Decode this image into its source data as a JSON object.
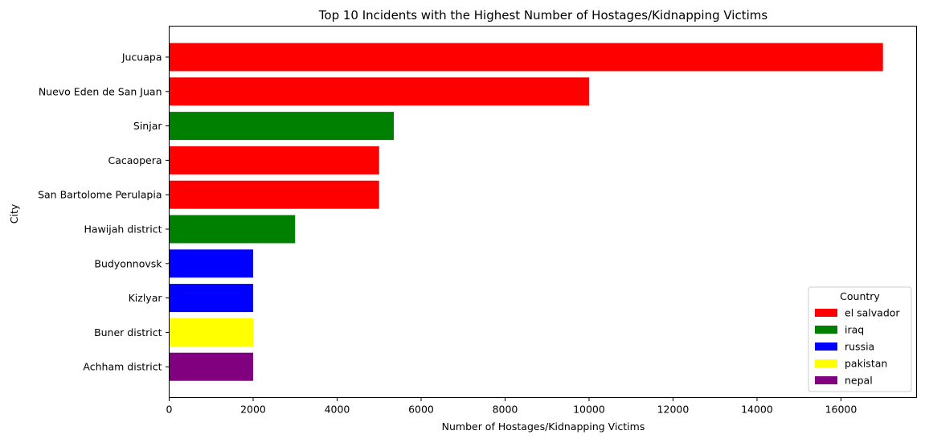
{
  "chart_data": {
    "type": "bar",
    "orientation": "horizontal",
    "title": "Top 10 Incidents with the Highest Number of Hostages/Kidnapping Victims",
    "xlabel": "Number of Hostages/Kidnapping Victims",
    "ylabel": "City",
    "xlim": [
      0,
      17800
    ],
    "xticks": [
      0,
      2000,
      4000,
      6000,
      8000,
      10000,
      12000,
      14000,
      16000
    ],
    "grid": false,
    "categories": [
      "Jucuapa",
      "Nuevo Eden de San Juan",
      "Sinjar",
      "Cacaopera",
      "San Bartolome Perulapia",
      "Hawijah district",
      "Budyonnovsk",
      "Kizlyar",
      "Buner district",
      "Achham district"
    ],
    "values": [
      17000,
      10000,
      5350,
      5000,
      5000,
      3000,
      2000,
      2000,
      2000,
      2000
    ],
    "bar_country": [
      "el salvador",
      "el salvador",
      "iraq",
      "el salvador",
      "el salvador",
      "iraq",
      "russia",
      "russia",
      "pakistan",
      "nepal"
    ],
    "legend": {
      "title": "Country",
      "placement": "lower-right",
      "entries": [
        {
          "label": "el salvador",
          "color": "#ff0000"
        },
        {
          "label": "iraq",
          "color": "#008000"
        },
        {
          "label": "russia",
          "color": "#0000ff"
        },
        {
          "label": "pakistan",
          "color": "#ffff00"
        },
        {
          "label": "nepal",
          "color": "#800080"
        }
      ]
    }
  }
}
